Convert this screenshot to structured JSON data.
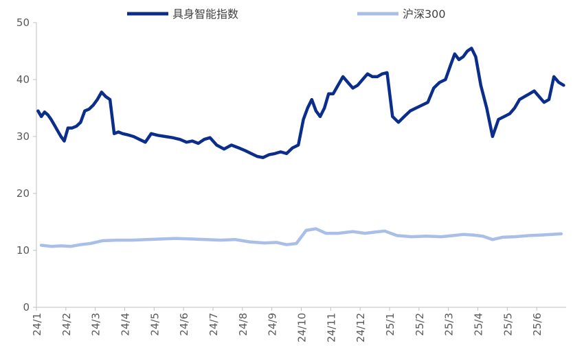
{
  "chart_data": {
    "type": "line",
    "title": "",
    "xlabel": "",
    "ylabel": "",
    "ylim": [
      0,
      50
    ],
    "yticks": [
      0,
      10,
      20,
      30,
      40,
      50
    ],
    "x_tick_labels": [
      "24/1",
      "24/2",
      "24/3",
      "24/4",
      "24/5",
      "24/6",
      "24/7",
      "24/8",
      "24/9",
      "24/10",
      "24/11",
      "24/12",
      "25/1",
      "25/2",
      "25/3",
      "25/4",
      "25/5",
      "25/6"
    ],
    "grid": false,
    "legend": "top",
    "series": [
      {
        "name": "具身智能指数",
        "color": "#0b2d8c",
        "points": [
          [
            "24/1",
            34.5
          ],
          [
            "24/1",
            33.5
          ],
          [
            "24/1",
            34.3
          ],
          [
            "24/1",
            33.8
          ],
          [
            "24/1",
            33.0
          ],
          [
            "24/1",
            32.0
          ],
          [
            "24/1",
            31.0
          ],
          [
            "24/1",
            30.0
          ],
          [
            "24/1",
            29.2
          ],
          [
            "24/2",
            31.5
          ],
          [
            "24/2",
            31.5
          ],
          [
            "24/2",
            31.8
          ],
          [
            "24/2",
            32.5
          ],
          [
            "24/2",
            34.5
          ],
          [
            "24/2",
            34.8
          ],
          [
            "24/2",
            35.5
          ],
          [
            "24/3",
            36.5
          ],
          [
            "24/3",
            37.8
          ],
          [
            "24/3",
            37.0
          ],
          [
            "24/3",
            36.5
          ],
          [
            "24/3",
            30.5
          ],
          [
            "24/3",
            30.8
          ],
          [
            "24/3",
            30.5
          ],
          [
            "24/4",
            30.3
          ],
          [
            "24/4",
            30.0
          ],
          [
            "24/4",
            29.5
          ],
          [
            "24/4",
            29.0
          ],
          [
            "24/4",
            30.5
          ],
          [
            "24/5",
            30.2
          ],
          [
            "24/5",
            30.0
          ],
          [
            "24/5",
            29.8
          ],
          [
            "24/5",
            29.5
          ],
          [
            "24/6",
            29.0
          ],
          [
            "24/6",
            29.2
          ],
          [
            "24/6",
            28.8
          ],
          [
            "24/6",
            29.5
          ],
          [
            "24/6",
            29.8
          ],
          [
            "24/7",
            28.5
          ],
          [
            "24/7",
            27.8
          ],
          [
            "24/7",
            28.5
          ],
          [
            "24/7",
            28.0
          ],
          [
            "24/8",
            27.5
          ],
          [
            "24/8",
            27.0
          ],
          [
            "24/8",
            26.5
          ],
          [
            "24/8",
            26.3
          ],
          [
            "24/8",
            26.8
          ],
          [
            "24/9",
            27.0
          ],
          [
            "24/9",
            27.3
          ],
          [
            "24/9",
            27.0
          ],
          [
            "24/9",
            28.0
          ],
          [
            "24/9",
            28.5
          ],
          [
            "24/10",
            33.0
          ],
          [
            "24/10",
            35.0
          ],
          [
            "24/10",
            36.5
          ],
          [
            "24/10",
            34.5
          ],
          [
            "24/10",
            33.5
          ],
          [
            "24/10",
            35.0
          ],
          [
            "24/10",
            37.5
          ],
          [
            "24/11",
            37.5
          ],
          [
            "24/11",
            39.0
          ],
          [
            "24/11",
            40.5
          ],
          [
            "24/11",
            39.5
          ],
          [
            "24/11",
            38.5
          ],
          [
            "24/11",
            39.0
          ],
          [
            "24/12",
            40.0
          ],
          [
            "24/12",
            41.0
          ],
          [
            "24/12",
            40.5
          ],
          [
            "24/12",
            40.5
          ],
          [
            "24/12",
            41.0
          ],
          [
            "24/12",
            41.2
          ],
          [
            "25/1",
            33.5
          ],
          [
            "25/1",
            32.5
          ],
          [
            "25/1",
            33.5
          ],
          [
            "25/1",
            34.5
          ],
          [
            "25/1",
            35.0
          ],
          [
            "25/2",
            35.5
          ],
          [
            "25/2",
            36.0
          ],
          [
            "25/2",
            38.5
          ],
          [
            "25/2",
            39.5
          ],
          [
            "25/2",
            40.0
          ],
          [
            "25/3",
            42.5
          ],
          [
            "25/3",
            44.5
          ],
          [
            "25/3",
            43.5
          ],
          [
            "25/3",
            44.0
          ],
          [
            "25/3",
            45.0
          ],
          [
            "25/3",
            45.5
          ],
          [
            "25/3",
            44.0
          ],
          [
            "25/4",
            39.0
          ],
          [
            "25/4",
            35.0
          ],
          [
            "25/4",
            30.0
          ],
          [
            "25/4",
            33.0
          ],
          [
            "25/4",
            33.5
          ],
          [
            "25/5",
            34.0
          ],
          [
            "25/5",
            35.0
          ],
          [
            "25/5",
            36.5
          ],
          [
            "25/5",
            37.0
          ],
          [
            "25/5",
            37.5
          ],
          [
            "25/5",
            38.0
          ],
          [
            "25/6",
            37.0
          ],
          [
            "25/6",
            36.0
          ],
          [
            "25/6",
            36.5
          ],
          [
            "25/6",
            40.5
          ],
          [
            "25/6",
            39.5
          ],
          [
            "25/6",
            39.0
          ]
        ]
      },
      {
        "name": "沪深300",
        "color": "#a9bfe8",
        "points": [
          [
            "24/1",
            10.9
          ],
          [
            "24/1",
            10.7
          ],
          [
            "24/1",
            10.8
          ],
          [
            "24/2",
            10.7
          ],
          [
            "24/2",
            11.0
          ],
          [
            "24/2",
            11.2
          ],
          [
            "24/3",
            11.7
          ],
          [
            "24/3",
            11.8
          ],
          [
            "24/4",
            11.8
          ],
          [
            "24/4",
            11.9
          ],
          [
            "24/5",
            12.0
          ],
          [
            "24/5",
            12.1
          ],
          [
            "24/6",
            12.0
          ],
          [
            "24/6",
            11.9
          ],
          [
            "24/7",
            11.8
          ],
          [
            "24/7",
            11.9
          ],
          [
            "24/8",
            11.5
          ],
          [
            "24/8",
            11.3
          ],
          [
            "24/9",
            11.4
          ],
          [
            "24/9",
            11.0
          ],
          [
            "24/9",
            11.2
          ],
          [
            "24/10",
            13.5
          ],
          [
            "24/10",
            13.8
          ],
          [
            "24/10",
            13.0
          ],
          [
            "24/11",
            13.0
          ],
          [
            "24/11",
            13.3
          ],
          [
            "24/12",
            13.0
          ],
          [
            "24/12",
            13.2
          ],
          [
            "24/12",
            13.4
          ],
          [
            "25/1",
            12.6
          ],
          [
            "25/1",
            12.4
          ],
          [
            "25/2",
            12.5
          ],
          [
            "25/2",
            12.4
          ],
          [
            "25/3",
            12.6
          ],
          [
            "25/3",
            12.8
          ],
          [
            "25/3",
            12.7
          ],
          [
            "25/4",
            12.5
          ],
          [
            "25/4",
            11.9
          ],
          [
            "25/4",
            12.3
          ],
          [
            "25/5",
            12.4
          ],
          [
            "25/5",
            12.6
          ],
          [
            "25/6",
            12.7
          ],
          [
            "25/6",
            12.8
          ],
          [
            "25/6",
            12.9
          ]
        ]
      }
    ]
  }
}
